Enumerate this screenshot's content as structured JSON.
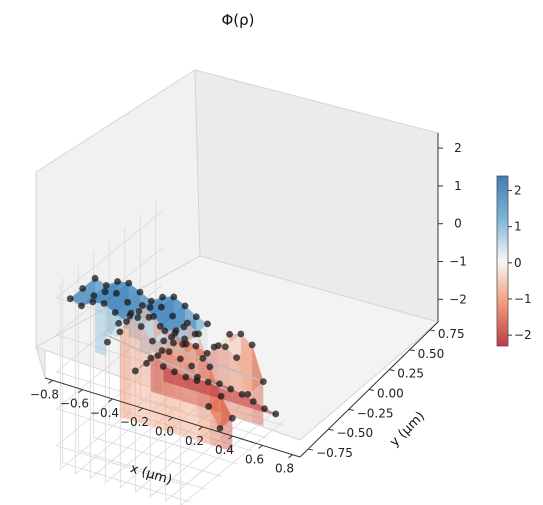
{
  "chart_data": {
    "type": "surface3d",
    "title": "Φ(ρ)",
    "xlabel": "x (μm)",
    "ylabel": "y (μm)",
    "zlabel": "",
    "x_ticks": [
      "−0.8",
      "−0.6",
      "−0.4",
      "−0.2",
      "0.0",
      "0.2",
      "0.4",
      "0.6",
      "0.8"
    ],
    "y_ticks": [
      "−0.75",
      "−0.50",
      "−0.25",
      "0.00",
      "0.25",
      "0.50",
      "0.75"
    ],
    "z_ticks": [
      "−2",
      "−1",
      "0",
      "1",
      "2"
    ],
    "colorbar_ticks": [
      "−2",
      "−1",
      "0",
      "1",
      "2"
    ],
    "colormap": "RdBu",
    "colors": {
      "low": "#b2182b",
      "mid": "#f7f7f7",
      "high": "#2166ac",
      "marker": "#1a1a1a"
    },
    "xlim": [
      -0.85,
      0.85
    ],
    "ylim": [
      -0.85,
      0.85
    ],
    "zlim": [
      -2.6,
      2.4
    ],
    "clim": [
      -2.3,
      2.4
    ],
    "grid": true,
    "surfaces": [
      {
        "name": "",
        "y_values": [
          0.75,
          0.55,
          0.35
        ],
        "points": [
          {
            "x": -0.75,
            "z": 1.9
          },
          {
            "x": -0.6,
            "z": 1.8
          },
          {
            "x": -0.45,
            "z": 2.0
          },
          {
            "x": -0.3,
            "z": 2.05
          },
          {
            "x": -0.15,
            "z": 1.9
          },
          {
            "x": 0.0,
            "z": 1.75
          },
          {
            "x": 0.15,
            "z": 1.95
          },
          {
            "x": 0.3,
            "z": 2.05
          },
          {
            "x": 0.45,
            "z": 1.9
          },
          {
            "x": 0.6,
            "z": 1.7
          },
          {
            "x": 0.75,
            "z": 1.6
          }
        ]
      },
      {
        "name": "",
        "y_values": [
          0.15,
          -0.05
        ],
        "points": [
          {
            "x": -0.75,
            "z": -0.1
          },
          {
            "x": -0.6,
            "z": 0.5
          },
          {
            "x": -0.45,
            "z": 0.8
          },
          {
            "x": -0.3,
            "z": 0.6
          },
          {
            "x": -0.15,
            "z": 0.3
          },
          {
            "x": 0.0,
            "z": 0.4
          },
          {
            "x": 0.15,
            "z": 0.7
          },
          {
            "x": 0.3,
            "z": 0.5
          },
          {
            "x": 0.45,
            "z": -0.3
          },
          {
            "x": 0.6,
            "z": -1.0
          },
          {
            "x": 0.75,
            "z": -1.5
          }
        ]
      },
      {
        "name": "",
        "y_values": [
          -0.3,
          -0.55
        ],
        "points": [
          {
            "x": -0.75,
            "z": -1.5
          },
          {
            "x": -0.6,
            "z": -1.2
          },
          {
            "x": -0.45,
            "z": -0.9
          },
          {
            "x": -0.3,
            "z": -0.7
          },
          {
            "x": -0.15,
            "z": -0.8
          },
          {
            "x": 0.0,
            "z": -0.9
          },
          {
            "x": 0.15,
            "z": -0.6
          },
          {
            "x": 0.3,
            "z": -0.2
          },
          {
            "x": 0.45,
            "z": -0.1
          },
          {
            "x": 0.6,
            "z": -0.3
          },
          {
            "x": 0.75,
            "z": -1.2
          }
        ]
      },
      {
        "name": "",
        "y_values": [
          -0.75
        ],
        "points": [
          {
            "x": -0.75,
            "z": -2.0
          },
          {
            "x": -0.6,
            "z": -2.05
          },
          {
            "x": -0.45,
            "z": -2.1
          },
          {
            "x": -0.3,
            "z": -2.1
          },
          {
            "x": -0.15,
            "z": -2.05
          },
          {
            "x": 0.0,
            "z": -2.0
          },
          {
            "x": 0.15,
            "z": -2.05
          },
          {
            "x": 0.3,
            "z": -2.1
          },
          {
            "x": 0.45,
            "z": -2.2
          },
          {
            "x": 0.6,
            "z": -2.3
          },
          {
            "x": 0.75,
            "z": -2.35
          }
        ]
      }
    ],
    "lines": [
      {
        "x": [
          -0.85,
          0.8
        ],
        "y": [
          0.1,
          0.1
        ],
        "z": [
          0.0,
          -0.5
        ]
      },
      {
        "x": [
          -0.75,
          0.75
        ],
        "y": [
          -0.5,
          -0.5
        ],
        "z": [
          -0.9,
          -1.1
        ]
      }
    ]
  }
}
